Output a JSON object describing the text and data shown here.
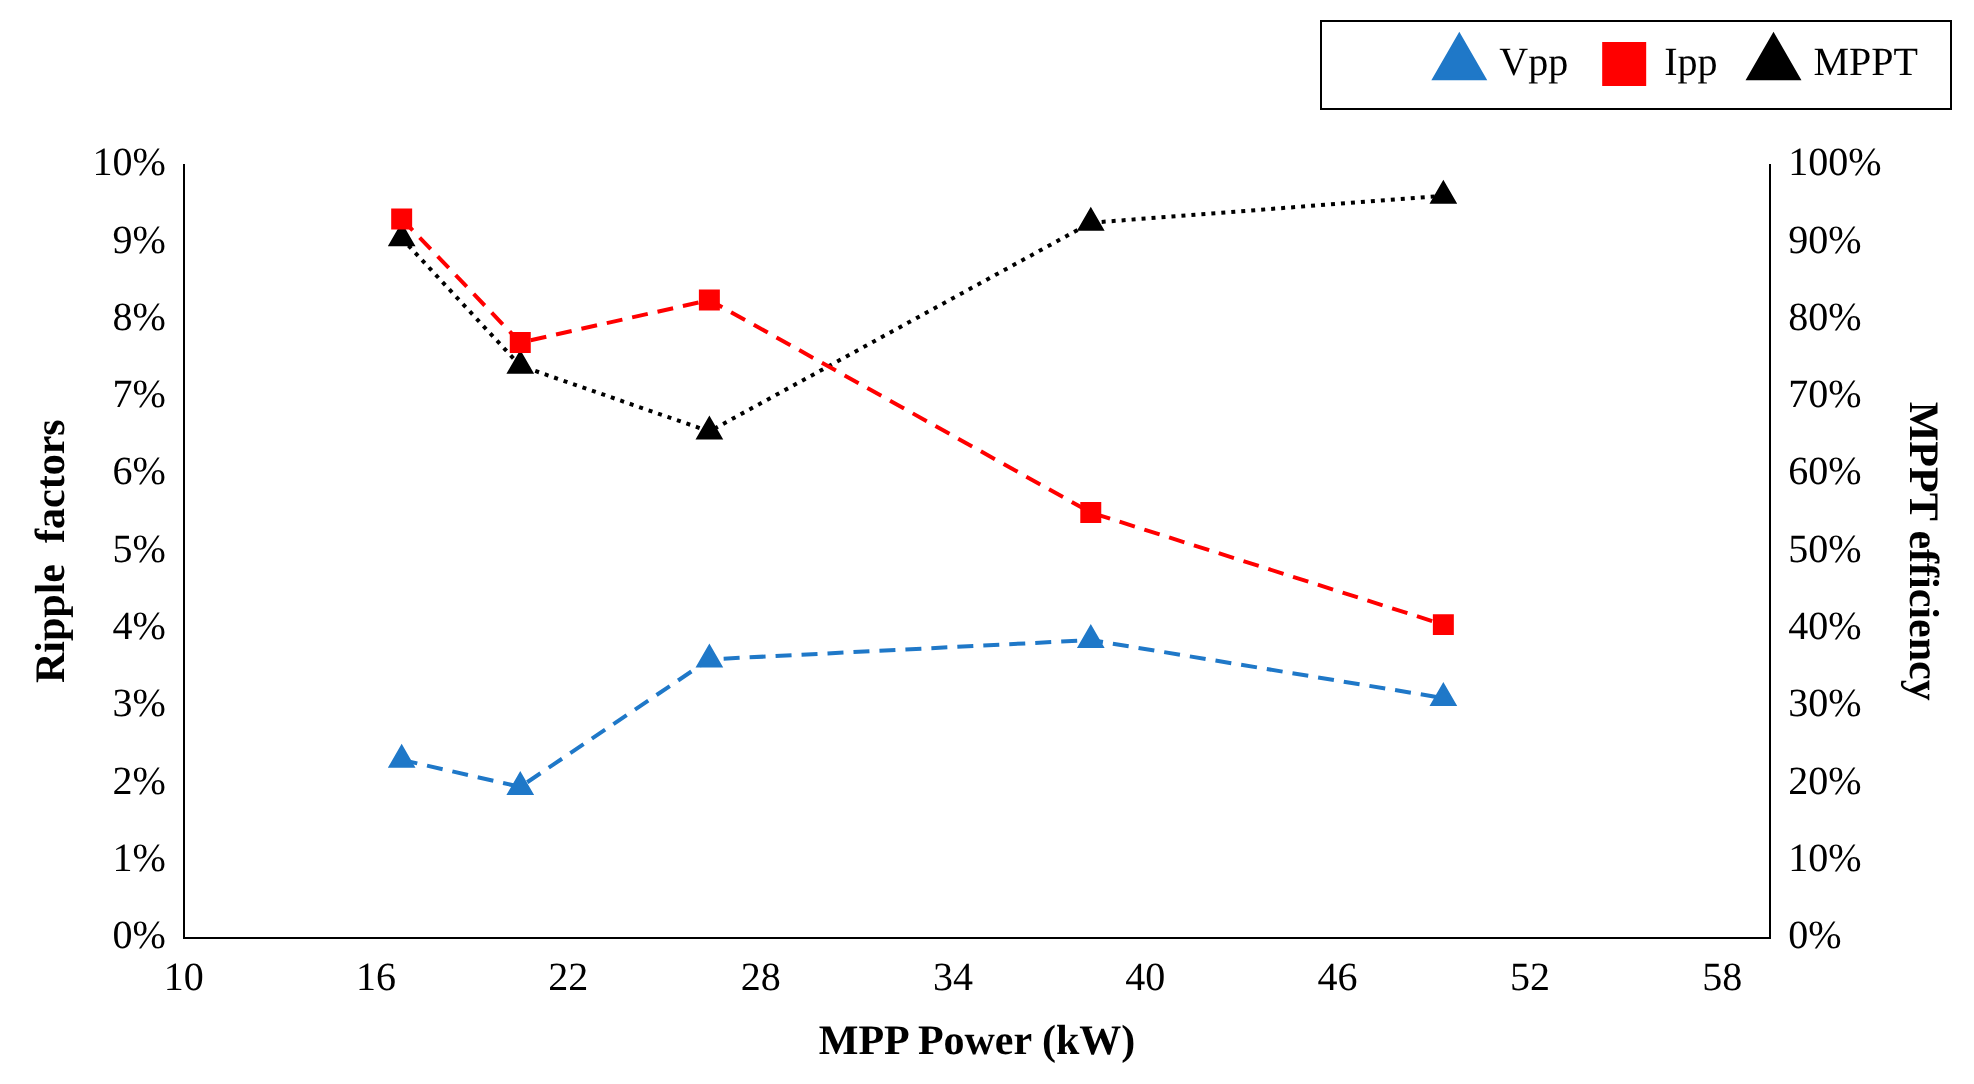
{
  "chart_data": {
    "type": "line",
    "xlabel": "MPP Power (kW)",
    "ylabel": "Ripple  factors",
    "y2label": "MPPT efficiency",
    "x": [
      16.8,
      20.5,
      26.4,
      38.3,
      49.3
    ],
    "series": [
      {
        "name": "Vpp",
        "color": "#1f78c8",
        "values": [
          2.3,
          1.95,
          3.6,
          3.85,
          3.1
        ],
        "marker": "triangle",
        "line_style": "dashed"
      },
      {
        "name": "Ipp",
        "color": "#ff0000",
        "values": [
          9.3,
          7.7,
          8.25,
          5.5,
          4.05
        ],
        "marker": "square",
        "line_style": "dashed"
      },
      {
        "name": "MPPT",
        "color": "#000000",
        "values": [
          90.5,
          74,
          65.5,
          92.5,
          96
        ],
        "marker": "triangle",
        "line_style": "dotted",
        "axis": "y2"
      }
    ],
    "xlim": [
      10,
      59.5
    ],
    "xticks": [
      10,
      16,
      22,
      28,
      34,
      40,
      46,
      52,
      58
    ],
    "ylim": [
      0,
      10
    ],
    "yticks": [
      {
        "value": 0,
        "label": "0%"
      },
      {
        "value": 1,
        "label": "1%"
      },
      {
        "value": 2,
        "label": "2%"
      },
      {
        "value": 3,
        "label": "3%"
      },
      {
        "value": 4,
        "label": "4%"
      },
      {
        "value": 5,
        "label": "5%"
      },
      {
        "value": 6,
        "label": "6%"
      },
      {
        "value": 7,
        "label": "7%"
      },
      {
        "value": 8,
        "label": "8%"
      },
      {
        "value": 9,
        "label": "9%"
      },
      {
        "value": 10,
        "label": "10%"
      }
    ],
    "y2lim": [
      0,
      100
    ],
    "y2ticks": [
      {
        "value": 0,
        "label": "0%"
      },
      {
        "value": 10,
        "label": "10%"
      },
      {
        "value": 20,
        "label": "20%"
      },
      {
        "value": 30,
        "label": "30%"
      },
      {
        "value": 40,
        "label": "40%"
      },
      {
        "value": 50,
        "label": "50%"
      },
      {
        "value": 60,
        "label": "60%"
      },
      {
        "value": 70,
        "label": "70%"
      },
      {
        "value": 80,
        "label": "80%"
      },
      {
        "value": 90,
        "label": "90%"
      },
      {
        "value": 100,
        "label": "100%"
      }
    ],
    "grid": false,
    "legend": "top right"
  }
}
